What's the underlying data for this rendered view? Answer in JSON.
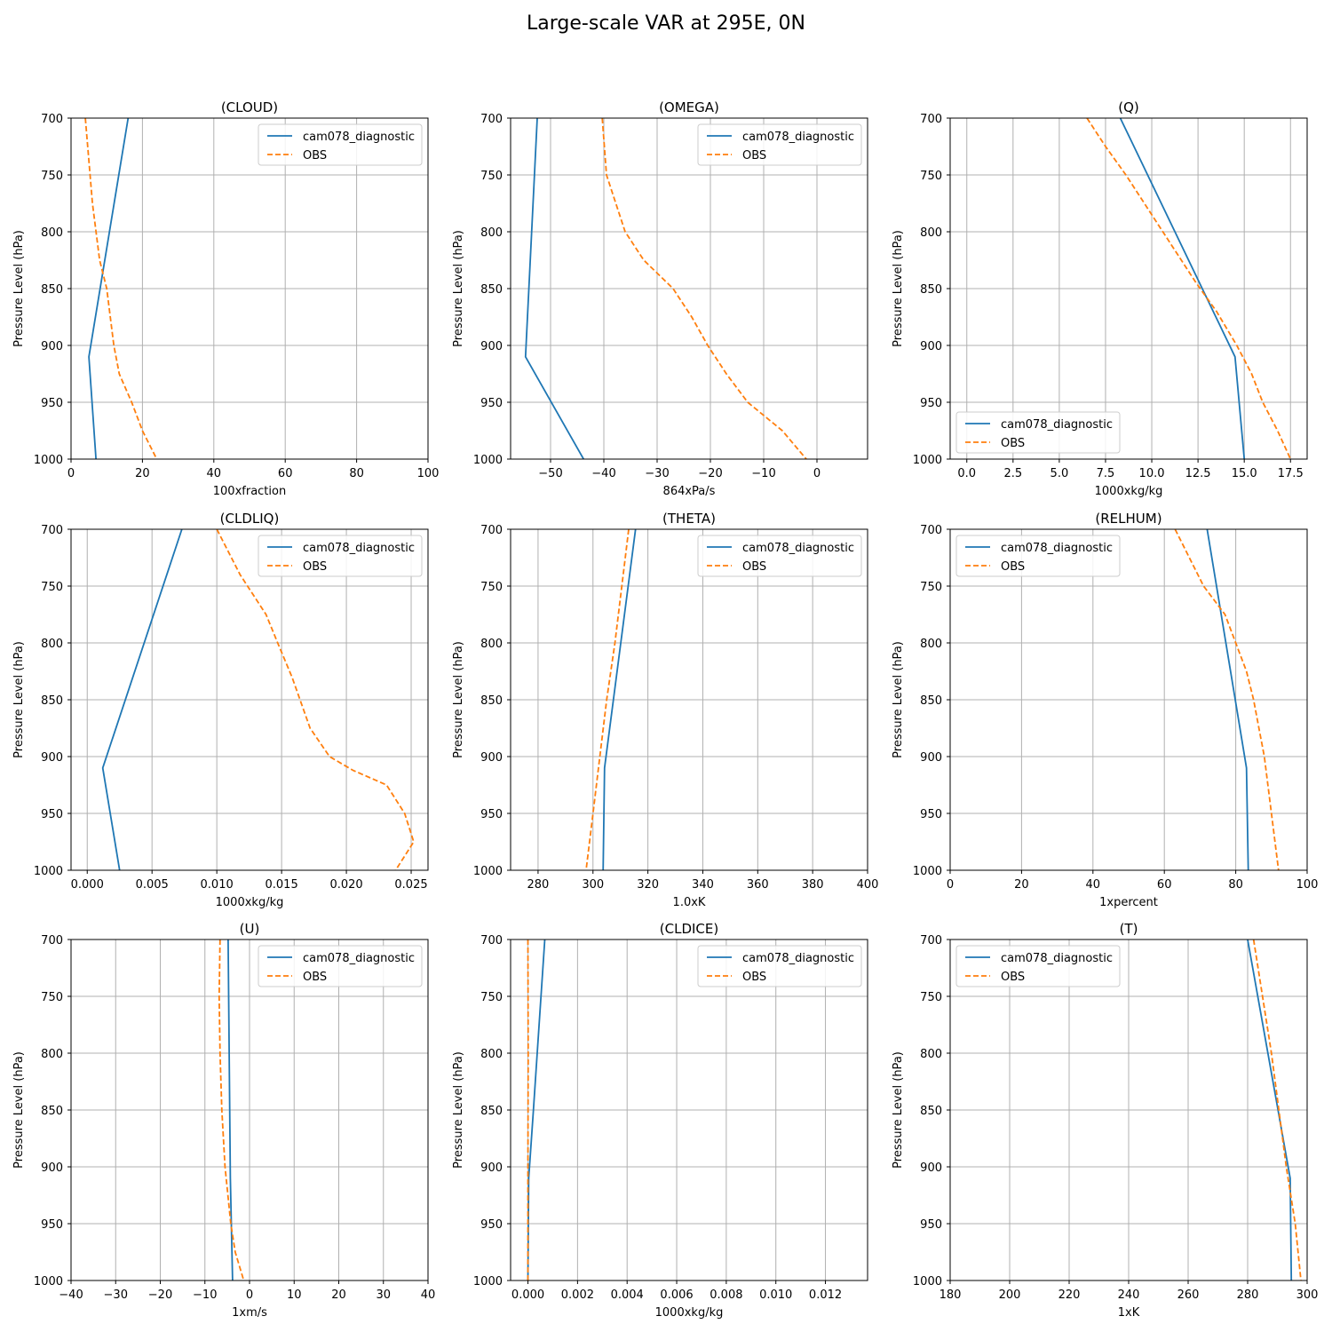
{
  "title": "Large-scale VAR at 295E, 0N",
  "colors": {
    "model": "#1f77b4",
    "obs": "#ff7f0e",
    "grid": "#b0b0b0",
    "axis": "#000000"
  },
  "chart_data": [
    {
      "type": "line",
      "title": "(CLOUD)",
      "xlabel": "100xfraction",
      "ylabel": "Pressure Level (hPa)",
      "xlim": [
        0,
        100
      ],
      "ylim": [
        1000,
        700
      ],
      "xticks": [
        0,
        20,
        40,
        60,
        80,
        100
      ],
      "xtick_labels": [
        "0",
        "20",
        "40",
        "60",
        "80",
        "100"
      ],
      "yticks": [
        700,
        750,
        800,
        850,
        900,
        950,
        1000
      ],
      "grid": true,
      "legend": "upper right",
      "series": [
        {
          "name": "cam078_diagnostic",
          "style": "solid",
          "points": [
            [
              16,
              700
            ],
            [
              5,
              910
            ],
            [
              7,
              1000
            ]
          ]
        },
        {
          "name": "OBS",
          "style": "dashed",
          "points": [
            [
              4,
              700
            ],
            [
              6,
              775
            ],
            [
              8,
              825
            ],
            [
              10,
              850
            ],
            [
              11,
              875
            ],
            [
              12,
              900
            ],
            [
              13.5,
              925
            ],
            [
              17,
              950
            ],
            [
              20,
              975
            ],
            [
              24,
              1000
            ]
          ]
        }
      ]
    },
    {
      "type": "line",
      "title": "(OMEGA)",
      "xlabel": "864xPa/s",
      "ylabel": "Pressure Level (hPa)",
      "xlim": [
        -57.5,
        9.5
      ],
      "ylim": [
        1000,
        700
      ],
      "xticks": [
        -50,
        -40,
        -30,
        -20,
        -10,
        0
      ],
      "xtick_labels": [
        "−50",
        "−40",
        "−30",
        "−20",
        "−10",
        "0"
      ],
      "yticks": [
        700,
        750,
        800,
        850,
        900,
        950,
        1000
      ],
      "grid": true,
      "legend": "upper right",
      "series": [
        {
          "name": "cam078_diagnostic",
          "style": "solid",
          "points": [
            [
              -52.5,
              700
            ],
            [
              -54.7,
              910
            ],
            [
              -43.8,
              1000
            ]
          ]
        },
        {
          "name": "OBS",
          "style": "dashed",
          "points": [
            [
              -40.3,
              700
            ],
            [
              -39.5,
              750
            ],
            [
              -36,
              800
            ],
            [
              -32.5,
              825
            ],
            [
              -27,
              850
            ],
            [
              -23.5,
              875
            ],
            [
              -20.5,
              900
            ],
            [
              -17,
              925
            ],
            [
              -13,
              950
            ],
            [
              -6.5,
              975
            ],
            [
              -2,
              1000
            ]
          ]
        }
      ]
    },
    {
      "type": "line",
      "title": "(Q)",
      "xlabel": "1000xkg/kg",
      "ylabel": "Pressure Level (hPa)",
      "xlim": [
        -0.9,
        18.4
      ],
      "ylim": [
        1000,
        700
      ],
      "xticks": [
        0,
        2.5,
        5,
        7.5,
        10,
        12.5,
        15,
        17.5
      ],
      "xtick_labels": [
        "0.0",
        "2.5",
        "5.0",
        "7.5",
        "10.0",
        "12.5",
        "15.0",
        "17.5"
      ],
      "yticks": [
        700,
        750,
        800,
        850,
        900,
        950,
        1000
      ],
      "grid": true,
      "legend": "lower left",
      "series": [
        {
          "name": "cam078_diagnostic",
          "style": "solid",
          "points": [
            [
              8.3,
              700
            ],
            [
              14.5,
              910
            ],
            [
              15,
              1000
            ]
          ]
        },
        {
          "name": "OBS",
          "style": "dashed",
          "points": [
            [
              6.5,
              700
            ],
            [
              7.5,
              725
            ],
            [
              8.6,
              750
            ],
            [
              10,
              785
            ],
            [
              11.2,
              815
            ],
            [
              12.4,
              845
            ],
            [
              13.5,
              870
            ],
            [
              14.6,
              900
            ],
            [
              15.4,
              925
            ],
            [
              16,
              950
            ],
            [
              16.8,
              975
            ],
            [
              17.5,
              1000
            ]
          ]
        }
      ]
    },
    {
      "type": "line",
      "title": "(CLDLIQ)",
      "xlabel": "1000xkg/kg",
      "ylabel": "Pressure Level (hPa)",
      "xlim": [
        -0.00125,
        0.0263
      ],
      "ylim": [
        1000,
        700
      ],
      "xticks": [
        0,
        0.005,
        0.01,
        0.015,
        0.02,
        0.025
      ],
      "xtick_labels": [
        "0.000",
        "0.005",
        "0.010",
        "0.015",
        "0.020",
        "0.025"
      ],
      "yticks": [
        700,
        750,
        800,
        850,
        900,
        950,
        1000
      ],
      "grid": true,
      "legend": "upper right",
      "series": [
        {
          "name": "cam078_diagnostic",
          "style": "solid",
          "points": [
            [
              0.0073,
              700
            ],
            [
              0.0012,
              910
            ],
            [
              0.0025,
              1000
            ]
          ]
        },
        {
          "name": "OBS",
          "style": "dashed",
          "points": [
            [
              0.01,
              700
            ],
            [
              0.0118,
              740
            ],
            [
              0.0138,
              775
            ],
            [
              0.0147,
              800
            ],
            [
              0.0158,
              830
            ],
            [
              0.0172,
              875
            ],
            [
              0.0187,
              900
            ],
            [
              0.0205,
              912
            ],
            [
              0.0231,
              925
            ],
            [
              0.0245,
              950
            ],
            [
              0.0252,
              975
            ],
            [
              0.0238,
              1000
            ]
          ]
        }
      ]
    },
    {
      "type": "line",
      "title": "(THETA)",
      "xlabel": "1.0xK",
      "ylabel": "Pressure Level (hPa)",
      "xlim": [
        270,
        400
      ],
      "ylim": [
        1000,
        700
      ],
      "xticks": [
        280,
        300,
        320,
        340,
        360,
        380,
        400
      ],
      "xtick_labels": [
        "280",
        "300",
        "320",
        "340",
        "360",
        "380",
        "400"
      ],
      "yticks": [
        700,
        750,
        800,
        850,
        900,
        950,
        1000
      ],
      "grid": true,
      "legend": "upper right",
      "series": [
        {
          "name": "cam078_diagnostic",
          "style": "solid",
          "points": [
            [
              315.5,
              700
            ],
            [
              304.2,
              910
            ],
            [
              303.7,
              1000
            ]
          ]
        },
        {
          "name": "OBS",
          "style": "dashed",
          "points": [
            [
              313,
              700
            ],
            [
              308,
              800
            ],
            [
              305,
              850
            ],
            [
              302.5,
              900
            ],
            [
              300,
              950
            ],
            [
              297.5,
              1000
            ]
          ]
        }
      ]
    },
    {
      "type": "line",
      "title": "(RELHUM)",
      "xlabel": "1xpercent",
      "ylabel": "Pressure Level (hPa)",
      "xlim": [
        0,
        100
      ],
      "ylim": [
        1000,
        700
      ],
      "xticks": [
        0,
        20,
        40,
        60,
        80,
        100
      ],
      "xtick_labels": [
        "0",
        "20",
        "40",
        "60",
        "80",
        "100"
      ],
      "yticks": [
        700,
        750,
        800,
        850,
        900,
        950,
        1000
      ],
      "grid": true,
      "legend": "upper left",
      "series": [
        {
          "name": "cam078_diagnostic",
          "style": "solid",
          "points": [
            [
              72,
              700
            ],
            [
              83,
              910
            ],
            [
              83.5,
              1000
            ]
          ]
        },
        {
          "name": "OBS",
          "style": "dashed",
          "points": [
            [
              63,
              700
            ],
            [
              71,
              750
            ],
            [
              77,
              775
            ],
            [
              80,
              800
            ],
            [
              83,
              825
            ],
            [
              85,
              850
            ],
            [
              86.5,
              875
            ],
            [
              88,
              900
            ],
            [
              89,
              925
            ],
            [
              90,
              950
            ],
            [
              91,
              975
            ],
            [
              92,
              1000
            ]
          ]
        }
      ]
    },
    {
      "type": "line",
      "title": "(U)",
      "xlabel": "1xm/s",
      "ylabel": "Pressure Level (hPa)",
      "xlim": [
        -40,
        40
      ],
      "ylim": [
        1000,
        700
      ],
      "xticks": [
        -40,
        -30,
        -20,
        -10,
        0,
        10,
        20,
        30,
        40
      ],
      "xtick_labels": [
        "−40",
        "−30",
        "−20",
        "−10",
        "0",
        "10",
        "20",
        "30",
        "40"
      ],
      "yticks": [
        700,
        750,
        800,
        850,
        900,
        950,
        1000
      ],
      "grid": true,
      "legend": "upper right",
      "series": [
        {
          "name": "cam078_diagnostic",
          "style": "solid",
          "points": [
            [
              -4.8,
              700
            ],
            [
              -4.3,
              910
            ],
            [
              -3.8,
              1000
            ]
          ]
        },
        {
          "name": "OBS",
          "style": "dashed",
          "points": [
            [
              -6.6,
              700
            ],
            [
              -6.8,
              750
            ],
            [
              -6.6,
              800
            ],
            [
              -6.2,
              850
            ],
            [
              -5.5,
              900
            ],
            [
              -4.2,
              950
            ],
            [
              -3.2,
              975
            ],
            [
              -1.3,
              1000
            ]
          ]
        }
      ]
    },
    {
      "type": "line",
      "title": "(CLDICE)",
      "xlabel": "1000xkg/kg",
      "ylabel": "Pressure Level (hPa)",
      "xlim": [
        -0.0007,
        0.0137
      ],
      "ylim": [
        1000,
        700
      ],
      "xticks": [
        0,
        0.002,
        0.004,
        0.006,
        0.008,
        0.01,
        0.012
      ],
      "xtick_labels": [
        "0.000",
        "0.002",
        "0.004",
        "0.006",
        "0.008",
        "0.010",
        "0.012"
      ],
      "yticks": [
        700,
        750,
        800,
        850,
        900,
        950,
        1000
      ],
      "grid": true,
      "legend": "upper right",
      "series": [
        {
          "name": "cam078_diagnostic",
          "style": "solid",
          "points": [
            [
              0.00068,
              700
            ],
            [
              0.00045,
              775
            ],
            [
              0.00022,
              850
            ],
            [
              3e-05,
              910
            ],
            [
              0,
              1000
            ]
          ]
        },
        {
          "name": "OBS",
          "style": "dashed",
          "points": [
            [
              0,
              700
            ],
            [
              1e-05,
              800
            ],
            [
              0,
              900
            ],
            [
              0,
              1000
            ]
          ]
        }
      ]
    },
    {
      "type": "line",
      "title": "(T)",
      "xlabel": "1xK",
      "ylabel": "Pressure Level (hPa)",
      "xlim": [
        180,
        300
      ],
      "ylim": [
        1000,
        700
      ],
      "xticks": [
        180,
        200,
        220,
        240,
        260,
        280,
        300
      ],
      "xtick_labels": [
        "180",
        "200",
        "220",
        "240",
        "260",
        "280",
        "300"
      ],
      "yticks": [
        700,
        750,
        800,
        850,
        900,
        950,
        1000
      ],
      "grid": true,
      "legend": "upper left",
      "series": [
        {
          "name": "cam078_diagnostic",
          "style": "solid",
          "points": [
            [
              280,
              700
            ],
            [
              294.3,
              910
            ],
            [
              294.7,
              1000
            ]
          ]
        },
        {
          "name": "OBS",
          "style": "dashed",
          "points": [
            [
              282,
              700
            ],
            [
              288,
              800
            ],
            [
              293,
              900
            ],
            [
              296,
              950
            ],
            [
              297.9,
              1000
            ]
          ]
        }
      ]
    }
  ]
}
